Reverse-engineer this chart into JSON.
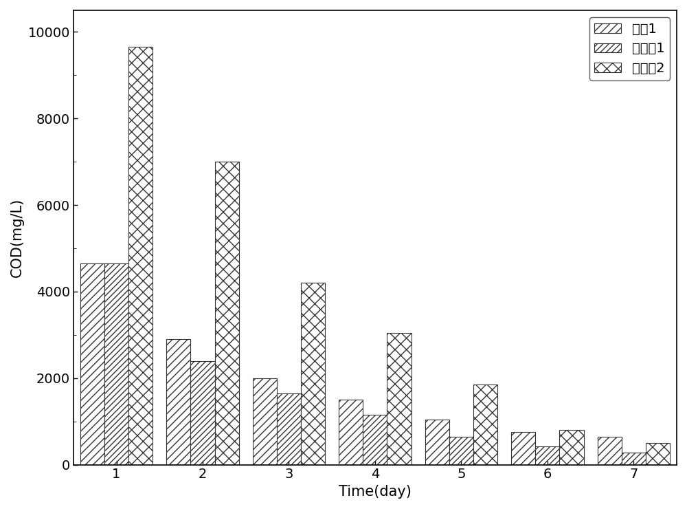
{
  "categories": [
    1,
    2,
    3,
    4,
    5,
    6,
    7
  ],
  "series": {
    "对比1": [
      4650,
      2900,
      2000,
      1500,
      1050,
      750,
      650
    ],
    "实施例1": [
      4650,
      2400,
      1650,
      1150,
      650,
      430,
      280
    ],
    "实施例2": [
      9650,
      7000,
      4200,
      3050,
      1850,
      800,
      500
    ]
  },
  "ylabel": "COD(mg/L)",
  "xlabel": "Time(day)",
  "ylim": [
    0,
    10500
  ],
  "yticks": [
    0,
    2000,
    4000,
    6000,
    8000,
    10000
  ],
  "bar_width": 0.28,
  "hatch_patterns": [
    "///",
    "////",
    "xx"
  ],
  "colors": [
    "white",
    "white",
    "white"
  ],
  "edge_colors": [
    "#333333",
    "#333333",
    "#333333"
  ],
  "legend_loc": "upper right",
  "font_size": 15,
  "tick_font_size": 14,
  "fig_width": 10.0,
  "fig_height": 7.4,
  "dpi": 100,
  "background_color": "#ffffff"
}
